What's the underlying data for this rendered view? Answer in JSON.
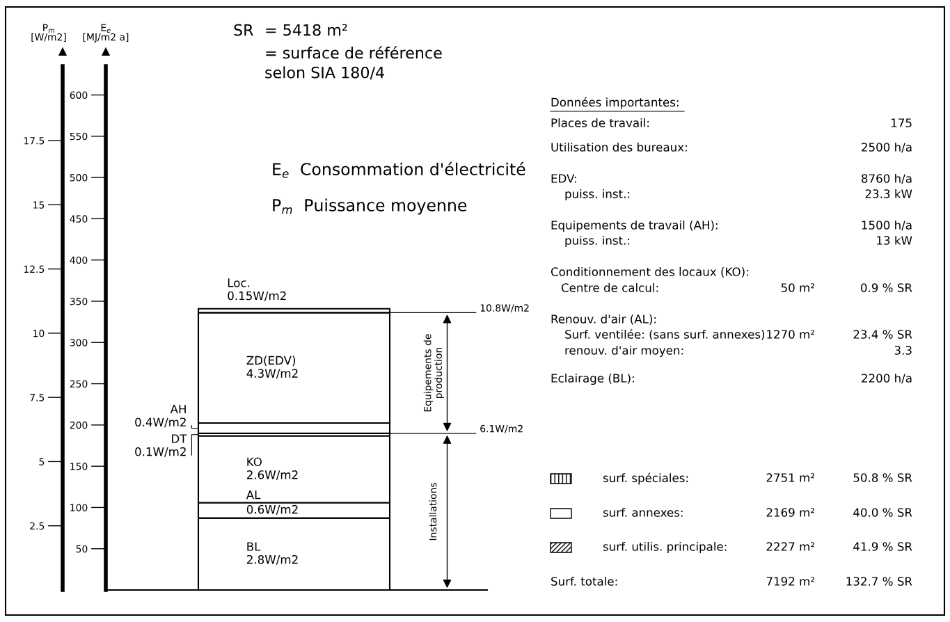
{
  "chart_data": [
    {
      "type": "bar",
      "stacked": true,
      "categories": [
        null
      ],
      "ylabel": "P$_{m}$\n[W/m2]",
      "y2label": "E$_{e}$\n[MJ/m2 a]",
      "ylim": [
        0,
        20.4
      ],
      "yticks": [
        2.5,
        5,
        7.5,
        10,
        12.5,
        15,
        17.5
      ],
      "y2lim": [
        0,
        635
      ],
      "y2ticks": [
        50,
        100,
        150,
        200,
        250,
        300,
        350,
        400,
        450,
        500,
        550,
        600
      ],
      "tick_labels": "y",
      "legend": false,
      "grid": false,
      "series": [
        {
          "name": "BL",
          "color": "#ffffff",
          "values": [
            2.8
          ],
          "value_labels": [
            "2.8W/m2"
          ]
        },
        {
          "name": "AL",
          "color": "#ffffff",
          "values": [
            0.6
          ],
          "value_labels": [
            "0.6W/m2"
          ]
        },
        {
          "name": "KO",
          "color": "#ffffff",
          "values": [
            2.6
          ],
          "value_labels": [
            "2.6W/m2"
          ]
        },
        {
          "name": "DT",
          "color": "#ffffff",
          "values": [
            0.1
          ],
          "value_labels": [
            "0.1W/m2"
          ]
        },
        {
          "name": "AH",
          "color": "#ffffff",
          "values": [
            0.4
          ],
          "value_labels": [
            "0.4W/m2"
          ]
        },
        {
          "name": "ZD(EDV)",
          "color": "#ffffff",
          "values": [
            4.3
          ],
          "value_labels": [
            "4.3W/m2"
          ]
        },
        {
          "name": "Loc.",
          "color": "#ffffff",
          "values": [
            0.15
          ],
          "value_labels": [
            "0.15W/m2"
          ]
        }
      ],
      "ref_lines": [
        {
          "axis": "y",
          "value": 10.8,
          "label": "10.8W/m2"
        },
        {
          "axis": "y",
          "value": 6.1,
          "label": "6.1W/m2"
        }
      ],
      "annotations": [
        "SR",
        "= 5418 m²",
        "= surface de référence\nselon SIA 180/4",
        "E$_{e}$  Consommation d'électricité",
        "P$_{m}$  Puissance moyenne",
        "Equipements de\nproduction",
        "Installations"
      ]
    },
    {
      "type": "other",
      "title": "Données importantes:",
      "annotations": [
        "Places de travail:\t\t175",
        "Utilisation des bureaux:\t\t2500 h/a",
        "EDV:\t\t8760 h/a",
        "puiss. inst.:\t\t23.3 kW",
        "Equipements de travail (AH):\t\t1500 h/a",
        "puiss. inst.:\t\t13 kW",
        "Conditionnement des locaux (KO):",
        "Centre de calcul:\t50 m²\t0.9 % SR",
        "Renouv. d'air (AL):",
        "Surf. ventilée: (sans surf. annexes)\t1270 m²\t23.4 % SR",
        "renouv. d'air moyen:\t\t3.3",
        "Eclairage (BL):\t\t2200 h/a",
        "surf. spéciales:\t2751 m²\t50.8 % SR",
        "surf. annexes:\t2169 m²\t40.0 % SR",
        "surf. utilis. principale:\t2227 m²\t41.9 % SR",
        "Surf. totale:\t7192 m²\t132.7 % SR"
      ]
    }
  ]
}
